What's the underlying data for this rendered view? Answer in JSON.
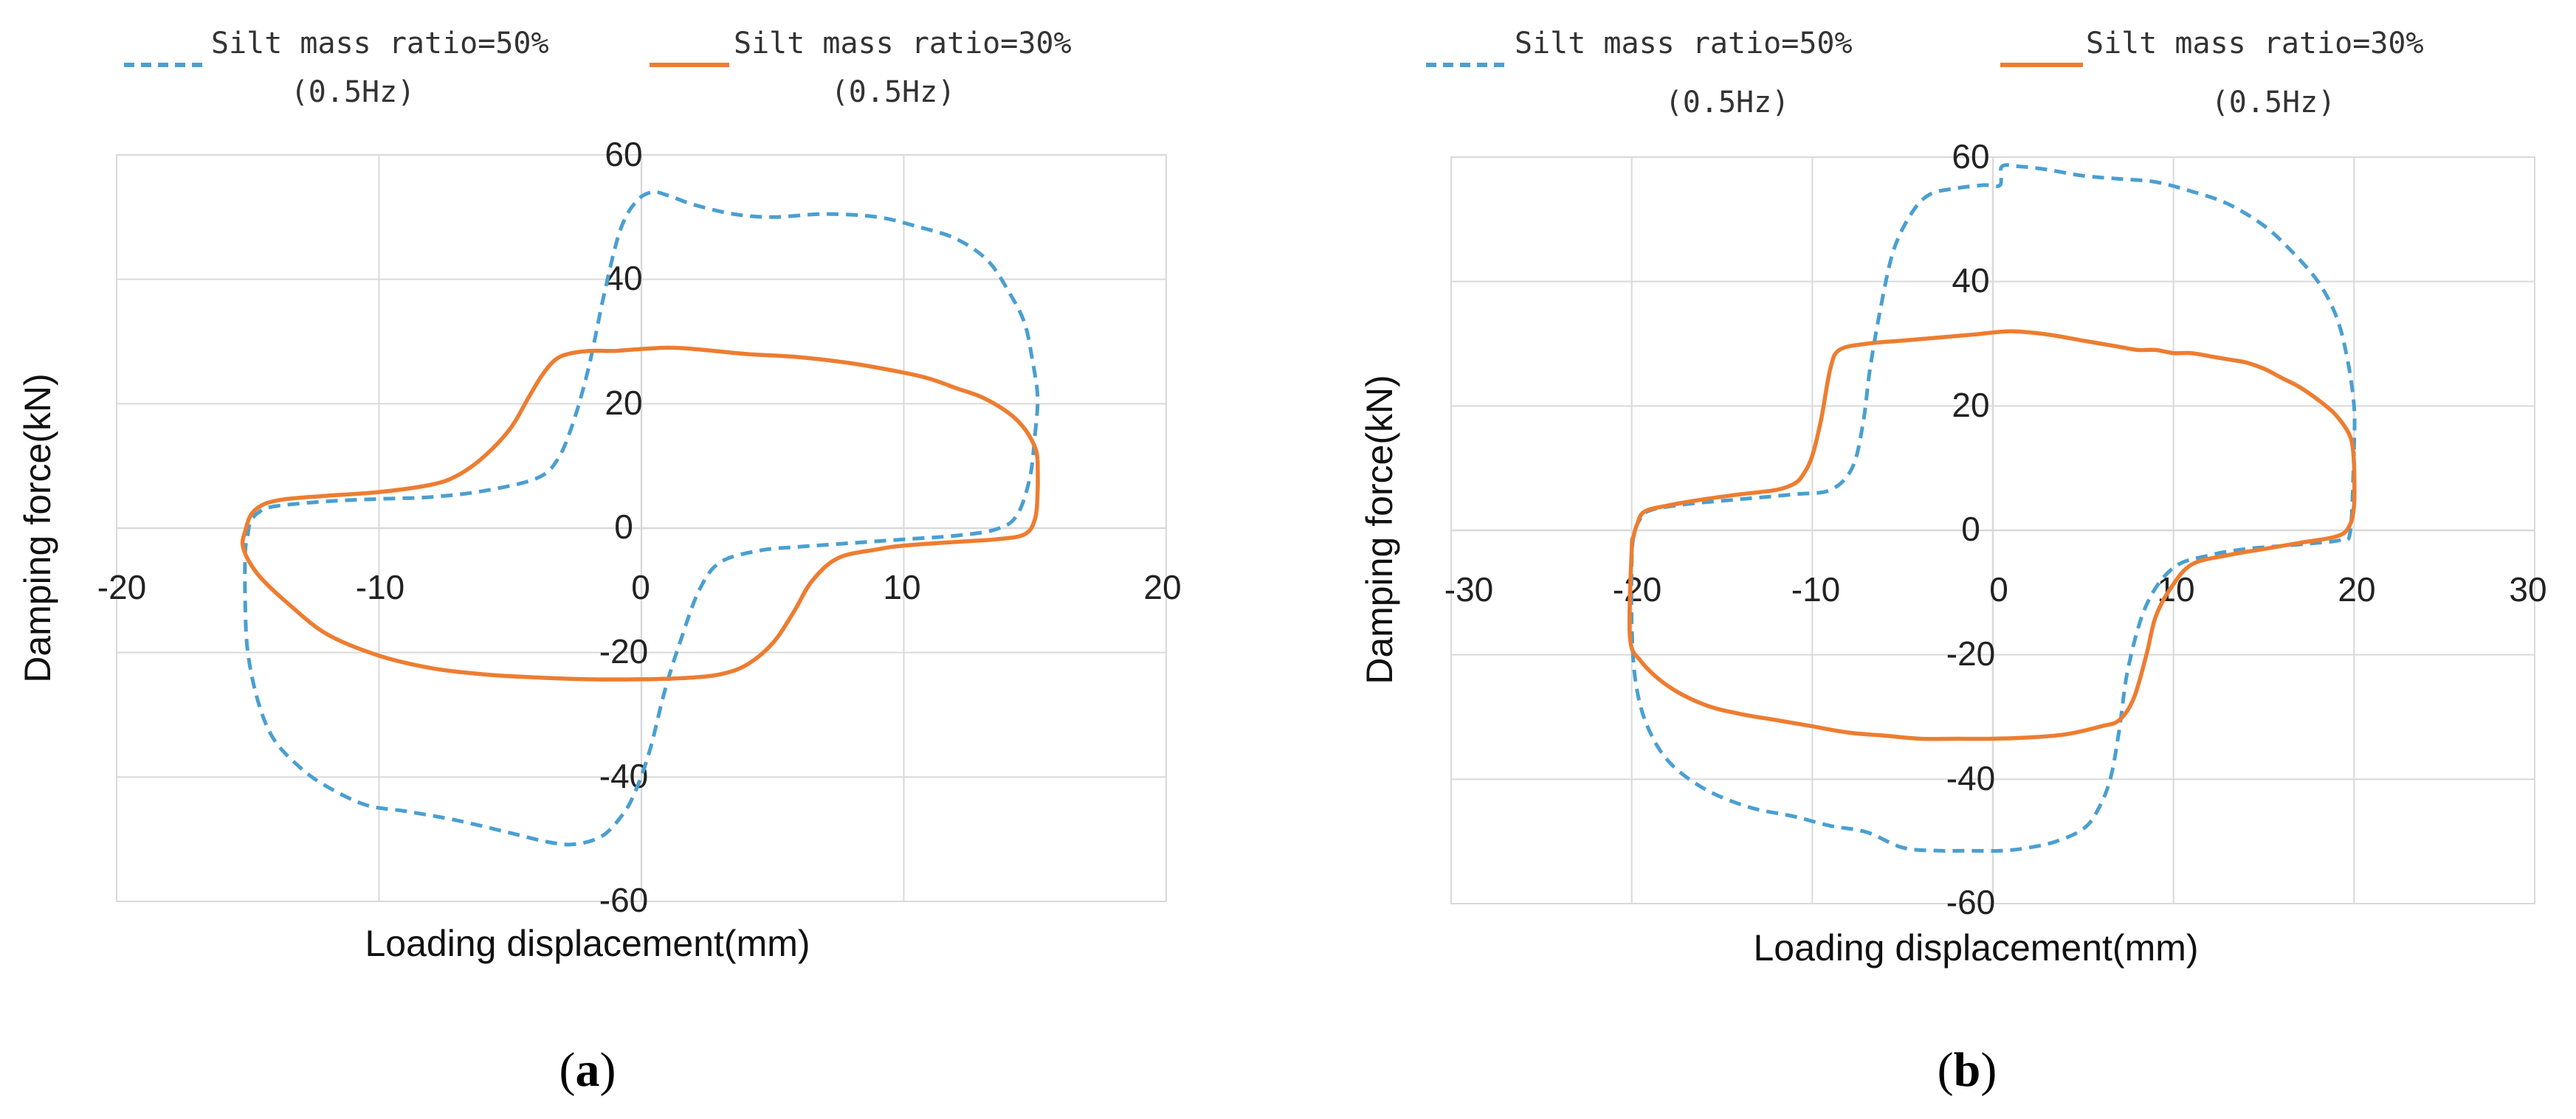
{
  "chart_data": [
    {
      "panel_label": "a",
      "type": "line",
      "xlabel": "Loading displacement(mm)",
      "ylabel": "Damping force(kN)",
      "xlim": [
        -20,
        20
      ],
      "ylim": [
        -60,
        60
      ],
      "xticks": [
        -20,
        -10,
        0,
        10,
        20
      ],
      "yticks": [
        -60,
        -40,
        -20,
        0,
        20,
        40,
        60
      ],
      "xtick_labels": [
        "-20",
        "-10",
        "0",
        "10",
        "20"
      ],
      "ytick_labels": [
        "-60",
        "-40",
        "-20",
        "0",
        "20",
        "40",
        "60"
      ],
      "grid": true,
      "legend_position": "top",
      "series": [
        {
          "name": "Silt mass ratio=50%",
          "sub": "(0.5Hz)",
          "color": "#4a9fd1",
          "dash": "dashed",
          "x": [
            15.0,
            15.1,
            14.9,
            14.6,
            14.0,
            13.2,
            12.0,
            10.5,
            9.0,
            7.0,
            5.0,
            3.5,
            2.0,
            1.0,
            0.4,
            -0.2,
            -0.8,
            -1.4,
            -2.0,
            -2.6,
            -3.2,
            -4.0,
            -6.0,
            -8.0,
            -10.0,
            -12.0,
            -14.0,
            -14.6,
            -14.9,
            -15.0,
            -15.1,
            -15.1,
            -15.0,
            -14.6,
            -14.0,
            -13.0,
            -12.0,
            -10.5,
            -9.0,
            -7.0,
            -5.0,
            -3.5,
            -2.5,
            -1.5,
            -0.8,
            -0.3,
            0.3,
            0.9,
            1.5,
            2.2,
            3.0,
            4.5,
            6.0,
            8.0,
            10.0,
            12.0,
            13.5,
            14.3,
            14.8,
            15.0
          ],
          "y": [
            15,
            21,
            27,
            33,
            38,
            43,
            46.5,
            48.5,
            50.0,
            50.5,
            50.0,
            50.5,
            52.0,
            53.5,
            54.0,
            52.5,
            48.0,
            38.0,
            26.0,
            17.0,
            11.0,
            8.0,
            6.0,
            5.0,
            4.7,
            4.3,
            3.5,
            2.5,
            1.0,
            -1.0,
            -4.0,
            -12.0,
            -20.0,
            -28.0,
            -34.0,
            -38.5,
            -41.5,
            -44.5,
            -45.5,
            -47.0,
            -49.0,
            -50.5,
            -50.8,
            -49.5,
            -46.5,
            -43.0,
            -36.0,
            -26.0,
            -18.0,
            -10.0,
            -5.5,
            -3.6,
            -3.0,
            -2.4,
            -1.8,
            -1.2,
            -0.2,
            2.0,
            8.0,
            15
          ]
        },
        {
          "name": "Silt mass ratio=30%",
          "sub": "(0.5Hz)",
          "color": "#ed7d31",
          "dash": "solid",
          "x": [
            15.1,
            15.0,
            14.6,
            14.0,
            13.0,
            12.0,
            11.0,
            10.0,
            8.0,
            6.0,
            4.0,
            2.0,
            1.0,
            0.0,
            -1.0,
            -2.0,
            -2.8,
            -3.3,
            -3.8,
            -4.3,
            -5.0,
            -6.0,
            -7.0,
            -8.0,
            -10.0,
            -12.0,
            -13.5,
            -14.3,
            -14.7,
            -14.9,
            -15.0,
            -15.1,
            -15.2,
            -15.0,
            -14.5,
            -13.5,
            -12.0,
            -10.0,
            -8.0,
            -6.0,
            -4.0,
            -2.0,
            0.0,
            1.0,
            2.0,
            3.0,
            4.0,
            5.0,
            5.8,
            6.5,
            7.5,
            9.0,
            10.0,
            12.0,
            13.5,
            14.6,
            15.0,
            15.1,
            15.1
          ],
          "y": [
            11.0,
            13.0,
            16.0,
            18.5,
            21.0,
            22.5,
            24.0,
            25.0,
            26.5,
            27.5,
            28.0,
            28.8,
            29.0,
            28.8,
            28.5,
            28.5,
            28.0,
            27.0,
            24.5,
            21.0,
            16.0,
            11.5,
            8.5,
            7.0,
            5.8,
            5.2,
            4.7,
            4.0,
            3.0,
            2.0,
            1.0,
            -0.5,
            -2.5,
            -5.0,
            -8.0,
            -12.0,
            -17.0,
            -20.5,
            -22.5,
            -23.5,
            -24.0,
            -24.3,
            -24.3,
            -24.2,
            -24.0,
            -23.5,
            -22.0,
            -18.5,
            -13.5,
            -8.5,
            -4.8,
            -3.4,
            -2.8,
            -2.2,
            -1.8,
            -1.0,
            1.5,
            6.0,
            11.0
          ]
        }
      ]
    },
    {
      "panel_label": "b",
      "type": "line",
      "xlabel": "Loading displacement(mm)",
      "ylabel": "Damping force(kN)",
      "xlim": [
        -30,
        30
      ],
      "ylim": [
        -60,
        60
      ],
      "xticks": [
        -30,
        -20,
        -10,
        0,
        10,
        20,
        30
      ],
      "yticks": [
        -60,
        -40,
        -20,
        0,
        20,
        40,
        60
      ],
      "xtick_labels": [
        "-30",
        "-20",
        "-10",
        "0",
        "10",
        "20",
        "30"
      ],
      "ytick_labels": [
        "-60",
        "-40",
        "-20",
        "0",
        "20",
        "40",
        "60"
      ],
      "grid": true,
      "legend_position": "top",
      "series": [
        {
          "name": "Silt mass ratio=50%",
          "sub": "(0.5Hz)",
          "color": "#4a9fd1",
          "dash": "dashed",
          "x": [
            20.0,
            20.0,
            19.6,
            19.0,
            18.0,
            16.5,
            15.0,
            13.0,
            11.0,
            9.0,
            7.0,
            5.0,
            3.0,
            1.5,
            0.5,
            0.4,
            -0.5,
            -2.0,
            -3.5,
            -4.5,
            -5.5,
            -6.2,
            -6.8,
            -7.2,
            -7.8,
            -9.0,
            -11.0,
            -14.0,
            -17.0,
            -19.0,
            -19.6,
            -19.9,
            -20.0,
            -20.0,
            -19.8,
            -19.2,
            -18.0,
            -16.0,
            -13.5,
            -11.0,
            -9.0,
            -7.0,
            -5.0,
            -3.0,
            -1.5,
            0.5,
            2.0,
            3.5,
            5.0,
            5.8,
            6.5,
            7.0,
            7.5,
            8.5,
            10.0,
            12.0,
            14.0,
            16.0,
            18.0,
            19.3,
            19.8,
            20.0
          ],
          "y": [
            13.0,
            20.0,
            28.0,
            34.5,
            40.0,
            45.0,
            49.0,
            52.5,
            54.5,
            56.0,
            56.5,
            57.0,
            58.0,
            58.5,
            58.5,
            55.5,
            55.5,
            55.0,
            54.0,
            51.0,
            45.0,
            36.0,
            26.0,
            17.0,
            10.0,
            6.5,
            5.8,
            5.0,
            4.2,
            3.2,
            1.5,
            -1.0,
            -5.0,
            -15.0,
            -24.0,
            -31.0,
            -37.0,
            -41.5,
            -44.5,
            -46.0,
            -47.5,
            -48.5,
            -51.0,
            -51.5,
            -51.5,
            -51.5,
            -51.0,
            -50.0,
            -48.0,
            -45.0,
            -40.0,
            -32.0,
            -22.0,
            -12.0,
            -6.0,
            -4.0,
            -3.0,
            -2.5,
            -2.0,
            -1.5,
            0.0,
            13.0
          ]
        },
        {
          "name": "Silt mass ratio=30%",
          "sub": "(0.5Hz)",
          "color": "#ed7d31",
          "dash": "solid",
          "x": [
            20.0,
            19.8,
            19.0,
            18.0,
            17.0,
            16.0,
            15.0,
            14.0,
            13.0,
            12.0,
            11.0,
            10.0,
            9.0,
            8.0,
            7.0,
            6.0,
            5.0,
            3.0,
            1.0,
            -1.0,
            -3.0,
            -5.0,
            -7.0,
            -8.5,
            -9.0,
            -9.5,
            -10.0,
            -10.5,
            -11.0,
            -12.0,
            -14.0,
            -16.0,
            -18.0,
            -19.3,
            -19.7,
            -19.9,
            -20.0,
            -20.1,
            -19.5,
            -18.0,
            -16.0,
            -14.0,
            -12.0,
            -10.0,
            -8.0,
            -6.0,
            -4.0,
            -2.0,
            0.0,
            2.0,
            4.0,
            6.0,
            7.0,
            7.8,
            8.5,
            9.0,
            9.8,
            11.0,
            13.0,
            15.0,
            17.0,
            19.0,
            19.7,
            20.0,
            20.0
          ],
          "y": [
            11.0,
            15.0,
            18.5,
            21.0,
            23.0,
            24.5,
            26.0,
            27.0,
            27.5,
            28.0,
            28.5,
            28.5,
            29.0,
            29.0,
            29.5,
            30.0,
            30.5,
            31.5,
            32.0,
            31.5,
            31.0,
            30.5,
            30.0,
            29.0,
            26.0,
            18.0,
            12.0,
            9.0,
            7.5,
            6.5,
            5.8,
            5.0,
            4.0,
            3.0,
            1.0,
            -1.0,
            -3.0,
            -17.0,
            -21.0,
            -25.0,
            -28.0,
            -29.5,
            -30.5,
            -31.5,
            -32.5,
            -33.0,
            -33.5,
            -33.5,
            -33.5,
            -33.3,
            -32.8,
            -31.5,
            -30.5,
            -27.0,
            -20.0,
            -14.0,
            -9.5,
            -5.5,
            -4.0,
            -3.0,
            -2.0,
            -1.0,
            0.5,
            4.0,
            11.0
          ]
        }
      ]
    }
  ]
}
